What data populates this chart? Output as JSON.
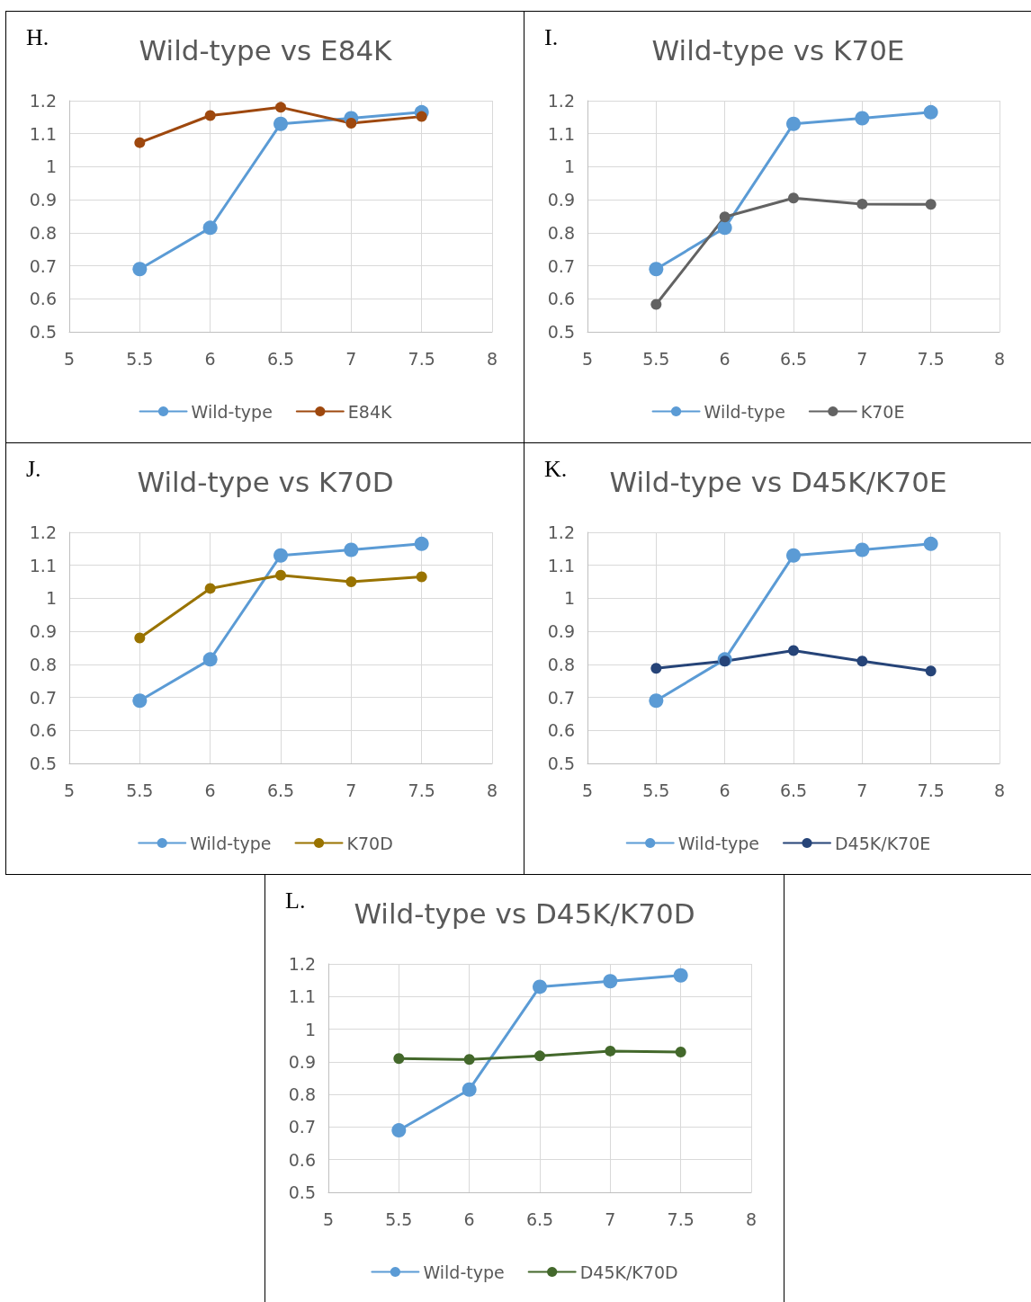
{
  "chart_data": [
    {
      "type": "line",
      "title": "Wild-type vs E84K",
      "annotations": [
        "H."
      ],
      "x": [
        5.5,
        6,
        6.5,
        7,
        7.5
      ],
      "xlim": [
        5,
        8
      ],
      "xticks": [
        5,
        5.5,
        6,
        6.5,
        7,
        7.5,
        8
      ],
      "ylim": [
        0.5,
        1.2
      ],
      "yticks": [
        0.5,
        0.6,
        0.7,
        0.8,
        0.9,
        1,
        1.1,
        1.2
      ],
      "grid": true,
      "legend": "bottom",
      "marker": "circle",
      "series": [
        {
          "name": "Wild-type",
          "color": "#5b9bd5",
          "values": [
            0.69,
            0.815,
            1.13,
            1.147,
            1.165
          ]
        },
        {
          "name": "E84K",
          "color": "#9e480e",
          "values": [
            1.073,
            1.155,
            1.18,
            1.132,
            1.152
          ]
        }
      ]
    },
    {
      "type": "line",
      "title": "Wild-type vs K70E",
      "annotations": [
        "I."
      ],
      "x": [
        5.5,
        6,
        6.5,
        7,
        7.5
      ],
      "xlim": [
        5,
        8
      ],
      "xticks": [
        5,
        5.5,
        6,
        6.5,
        7,
        7.5,
        8
      ],
      "ylim": [
        0.5,
        1.2
      ],
      "yticks": [
        0.5,
        0.6,
        0.7,
        0.8,
        0.9,
        1,
        1.1,
        1.2
      ],
      "grid": true,
      "legend": "bottom",
      "marker": "circle",
      "series": [
        {
          "name": "Wild-type",
          "color": "#5b9bd5",
          "values": [
            0.69,
            0.815,
            1.13,
            1.147,
            1.165
          ]
        },
        {
          "name": "K70E",
          "color": "#636363",
          "values": [
            0.583,
            0.848,
            0.905,
            0.887,
            0.886
          ]
        }
      ]
    },
    {
      "type": "line",
      "title": "Wild-type vs K70D",
      "annotations": [
        "J."
      ],
      "x": [
        5.5,
        6,
        6.5,
        7,
        7.5
      ],
      "xlim": [
        5,
        8
      ],
      "xticks": [
        5,
        5.5,
        6,
        6.5,
        7,
        7.5,
        8
      ],
      "ylim": [
        0.5,
        1.2
      ],
      "yticks": [
        0.5,
        0.6,
        0.7,
        0.8,
        0.9,
        1,
        1.1,
        1.2
      ],
      "grid": true,
      "legend": "bottom",
      "marker": "circle",
      "series": [
        {
          "name": "Wild-type",
          "color": "#5b9bd5",
          "values": [
            0.69,
            0.815,
            1.13,
            1.147,
            1.165
          ]
        },
        {
          "name": "K70D",
          "color": "#997300",
          "values": [
            0.88,
            1.03,
            1.07,
            1.05,
            1.065
          ]
        }
      ]
    },
    {
      "type": "line",
      "title": "Wild-type vs D45K/K70E",
      "annotations": [
        "K."
      ],
      "x": [
        5.5,
        6,
        6.5,
        7,
        7.5
      ],
      "xlim": [
        5,
        8
      ],
      "xticks": [
        5,
        5.5,
        6,
        6.5,
        7,
        7.5,
        8
      ],
      "ylim": [
        0.5,
        1.2
      ],
      "yticks": [
        0.5,
        0.6,
        0.7,
        0.8,
        0.9,
        1,
        1.1,
        1.2
      ],
      "grid": true,
      "legend": "bottom",
      "marker": "circle",
      "series": [
        {
          "name": "Wild-type",
          "color": "#5b9bd5",
          "values": [
            0.69,
            0.815,
            1.13,
            1.147,
            1.165
          ]
        },
        {
          "name": "D45K/K70E",
          "color": "#264478",
          "values": [
            0.788,
            0.81,
            0.842,
            0.81,
            0.78
          ]
        }
      ]
    },
    {
      "type": "line",
      "title": "Wild-type vs D45K/K70D",
      "annotations": [
        "L."
      ],
      "x": [
        5.5,
        6,
        6.5,
        7,
        7.5
      ],
      "xlim": [
        5,
        8
      ],
      "xticks": [
        5,
        5.5,
        6,
        6.5,
        7,
        7.5,
        8
      ],
      "ylim": [
        0.5,
        1.2
      ],
      "yticks": [
        0.5,
        0.6,
        0.7,
        0.8,
        0.9,
        1,
        1.1,
        1.2
      ],
      "grid": true,
      "legend": "bottom",
      "marker": "circle",
      "series": [
        {
          "name": "Wild-type",
          "color": "#5b9bd5",
          "values": [
            0.69,
            0.815,
            1.13,
            1.147,
            1.165
          ]
        },
        {
          "name": "D45K/K70D",
          "color": "#43682b",
          "values": [
            0.91,
            0.907,
            0.918,
            0.933,
            0.93
          ]
        }
      ]
    }
  ]
}
